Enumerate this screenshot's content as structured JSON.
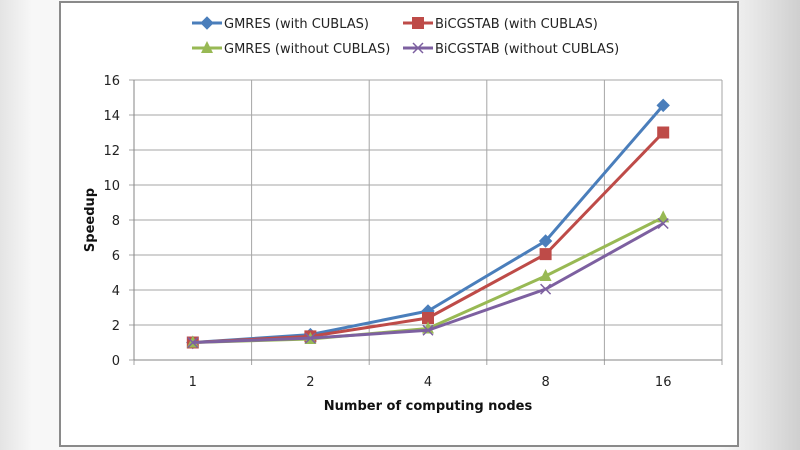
{
  "chart_data": {
    "type": "line",
    "title": "",
    "xlabel": "Number of computing nodes",
    "ylabel": "Speedup",
    "categories": [
      "1",
      "2",
      "4",
      "8",
      "16"
    ],
    "ylim": [
      0,
      16
    ],
    "yticks": [
      "0",
      "2",
      "4",
      "6",
      "8",
      "10",
      "12",
      "14",
      "16"
    ],
    "grid": true,
    "legend_position": "top",
    "series": [
      {
        "name": "GMRES (with CUBLAS)",
        "color": "#4a7ebb",
        "marker": "diamond",
        "values": [
          1.0,
          1.45,
          2.8,
          6.8,
          14.55
        ]
      },
      {
        "name": "BiCGSTAB (with CUBLAS)",
        "color": "#be4b48",
        "marker": "square",
        "values": [
          1.0,
          1.35,
          2.4,
          6.05,
          13.0
        ]
      },
      {
        "name": "GMRES (without CUBLAS)",
        "color": "#98b954",
        "marker": "triangle",
        "values": [
          1.0,
          1.2,
          1.8,
          4.8,
          8.15
        ]
      },
      {
        "name": "BiCGSTAB (without CUBLAS)",
        "color": "#7d60a0",
        "marker": "x",
        "values": [
          1.0,
          1.25,
          1.7,
          4.05,
          7.8
        ]
      }
    ]
  }
}
